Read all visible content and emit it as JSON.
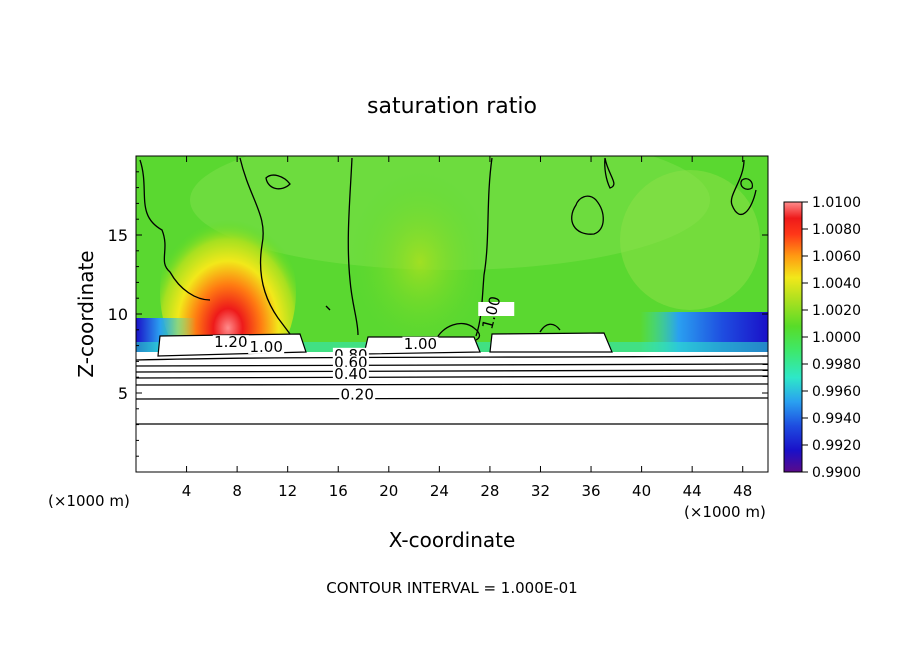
{
  "chart_data": {
    "type": "heatmap",
    "title": "saturation ratio",
    "xlabel": "X-coordinate",
    "ylabel": "Z-coordinate",
    "x_unit_left": "(×1000 m)",
    "x_unit_right": "(×1000 m)",
    "footer": "CONTOUR INTERVAL = 1.000E-01",
    "xlim": [
      0,
      50
    ],
    "ylim": [
      0,
      20
    ],
    "x_ticks": [
      4,
      8,
      12,
      16,
      20,
      24,
      28,
      32,
      36,
      40,
      44,
      48
    ],
    "y_ticks": [
      5,
      10,
      15
    ],
    "colorbar": {
      "min": 0.99,
      "max": 1.01,
      "labels": [
        "1.0100",
        "1.0080",
        "1.0060",
        "1.0040",
        "1.0020",
        "1.0000",
        "0.9980",
        "0.9960",
        "0.9940",
        "0.9920",
        "0.9900"
      ],
      "colors": [
        "#5a0a8a",
        "#1a10c8",
        "#1e4ce0",
        "#2aa0f0",
        "#2ee8c8",
        "#3ee86a",
        "#58dc28",
        "#a6e020",
        "#f2e81a",
        "#ff9a12",
        "#ff3818",
        "#ee1a1a",
        "#ff8c8c"
      ]
    },
    "contour_labels": [
      {
        "text": "1.20",
        "x": 7.5,
        "y": 7.9
      },
      {
        "text": "1.00",
        "x": 10.3,
        "y": 7.6
      },
      {
        "text": "0.80",
        "x": 17.0,
        "y": 7.1
      },
      {
        "text": "0.60",
        "x": 17.0,
        "y": 6.6
      },
      {
        "text": "0.40",
        "x": 17.0,
        "y": 5.9
      },
      {
        "text": "0.20",
        "x": 17.5,
        "y": 4.6
      },
      {
        "text": "1.00",
        "x": 22.5,
        "y": 7.8
      },
      {
        "text": "1.00",
        "x": 28.5,
        "y": 10.0
      }
    ]
  }
}
